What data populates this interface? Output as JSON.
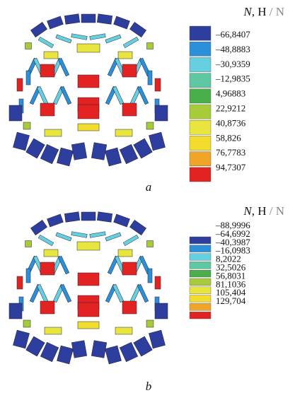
{
  "panels": [
    {
      "legend": {
        "title": {
          "symbol": "N",
          "comma_unit": ", H",
          "slash_unit": " / N"
        },
        "labels": [
          "–66,8407",
          "–48,8883",
          "–30,9359",
          "–12,9835",
          "4,96883",
          "22,9212",
          "40,8736",
          "58,826",
          "76,7783",
          "94,7307"
        ],
        "colors": [
          "#2d3e9e",
          "#2c8fd9",
          "#66cfe0",
          "#5ec8a3",
          "#4aae4a",
          "#a8cb3a",
          "#e8e63e",
          "#f2dc2c",
          "#f0a428",
          "#e32222"
        ]
      },
      "caption": "a"
    },
    {
      "legend": {
        "title": {
          "symbol": "N",
          "comma_unit": ", H",
          "slash_unit": " / N"
        },
        "labels": [
          "–88,9996",
          "–64,6992",
          "–40,3987",
          "–16,0983",
          "8,2022",
          "32,5026",
          "56,8031",
          "81,1036",
          "105,404",
          "129,704"
        ],
        "colors": [
          "#2d3e9e",
          "#2c8fd9",
          "#66cfe0",
          "#5ec8a3",
          "#4aae4a",
          "#a8cb3a",
          "#e8e63e",
          "#f2dc2c",
          "#f0a428",
          "#e32222"
        ]
      },
      "caption": "b"
    }
  ]
}
